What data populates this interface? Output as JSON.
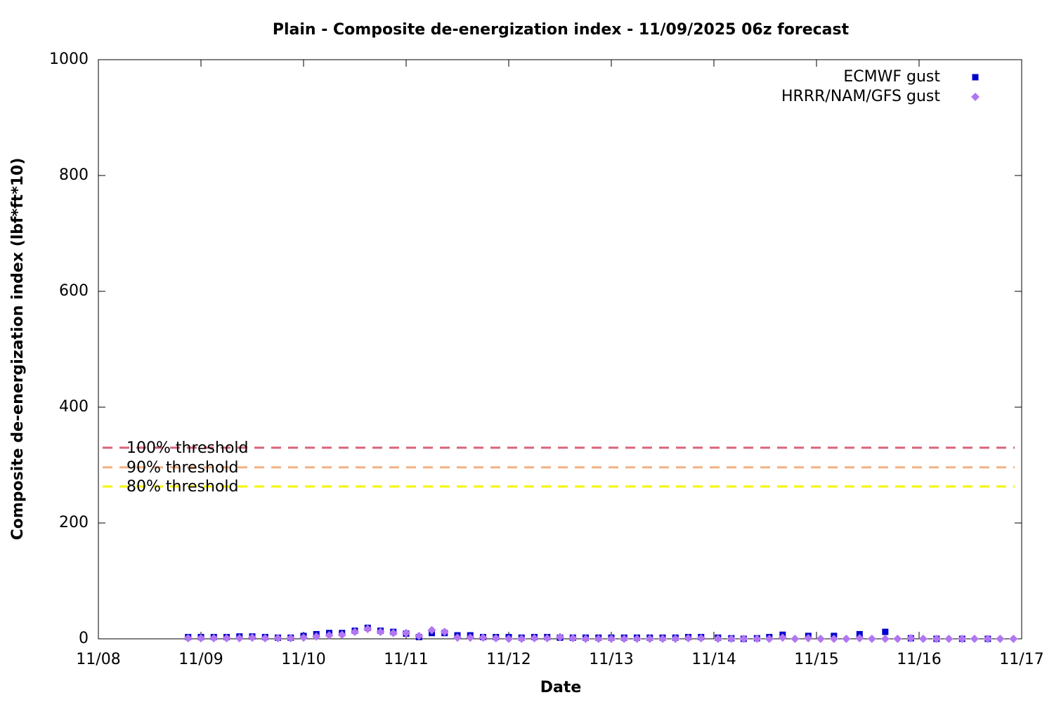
{
  "chart_data": {
    "type": "scatter",
    "title": "Plain - Composite de-energization index - 11/09/2025 06z forecast",
    "xlabel": "Date",
    "ylabel": "Composite de-energization index (lbf*ft*10)",
    "xlim": [
      0,
      9
    ],
    "xticks": [
      {
        "value": 0,
        "label": "11/08"
      },
      {
        "value": 1,
        "label": "11/09"
      },
      {
        "value": 2,
        "label": "11/10"
      },
      {
        "value": 3,
        "label": "11/11"
      },
      {
        "value": 4,
        "label": "11/12"
      },
      {
        "value": 5,
        "label": "11/13"
      },
      {
        "value": 6,
        "label": "11/14"
      },
      {
        "value": 7,
        "label": "11/15"
      },
      {
        "value": 8,
        "label": "11/16"
      },
      {
        "value": 9,
        "label": "11/17"
      }
    ],
    "ylim": [
      0,
      1000
    ],
    "yticks": [
      0,
      200,
      400,
      600,
      800,
      1000
    ],
    "grid": false,
    "legend": "top right",
    "thresholds": [
      {
        "label": "100% threshold",
        "value": 330,
        "color": "#d9647a"
      },
      {
        "label": "90% threshold",
        "value": 296,
        "color": "#f4b183"
      },
      {
        "label": "80% threshold",
        "value": 263,
        "color": "#f5f500"
      }
    ],
    "series": [
      {
        "name": "ECMWF gust",
        "color": "#0000cc",
        "marker": "square",
        "x": [
          0.875,
          1,
          1.125,
          1.25,
          1.375,
          1.5,
          1.625,
          1.75,
          1.875,
          2,
          2.125,
          2.25,
          2.375,
          2.5,
          2.625,
          2.75,
          2.875,
          3,
          3.125,
          3.25,
          3.375,
          3.5,
          3.625,
          3.75,
          3.875,
          4,
          4.125,
          4.25,
          4.375,
          4.5,
          4.625,
          4.75,
          4.875,
          5,
          5.125,
          5.25,
          5.375,
          5.5,
          5.625,
          5.75,
          5.875,
          6.04,
          6.17,
          6.29,
          6.42,
          6.54,
          6.67,
          6.92,
          7.17,
          7.42,
          7.67,
          7.92,
          8.17,
          8.42,
          8.67
        ],
        "values": [
          3,
          3,
          3,
          3,
          4,
          4,
          3,
          2,
          2,
          5,
          8,
          10,
          10,
          14,
          19,
          14,
          12,
          9,
          3,
          10,
          10,
          6,
          6,
          3,
          3,
          3,
          2,
          3,
          3,
          2,
          2,
          2,
          2,
          2,
          2,
          2,
          2,
          2,
          2,
          3,
          3,
          2,
          1,
          0,
          1,
          3,
          7,
          5,
          5,
          8,
          12,
          1,
          0,
          0,
          0
        ]
      },
      {
        "name": "HRRR/NAM/GFS gust",
        "color": "#b276f2",
        "marker": "diamond",
        "x": [
          0.875,
          1,
          1.125,
          1.25,
          1.375,
          1.5,
          1.625,
          1.75,
          1.875,
          2,
          2.125,
          2.25,
          2.375,
          2.5,
          2.625,
          2.75,
          2.875,
          3,
          3.125,
          3.25,
          3.375,
          3.5,
          3.625,
          3.75,
          3.875,
          4,
          4.125,
          4.25,
          4.375,
          4.5,
          4.625,
          4.75,
          4.875,
          5,
          5.125,
          5.25,
          5.375,
          5.5,
          5.625,
          5.75,
          5.875,
          6.04,
          6.17,
          6.29,
          6.42,
          6.54,
          6.67,
          6.79,
          6.92,
          7.04,
          7.17,
          7.29,
          7.42,
          7.54,
          7.67,
          7.79,
          7.92,
          8.04,
          8.17,
          8.29,
          8.42,
          8.54,
          8.67,
          8.79,
          8.92
        ],
        "values": [
          1,
          1,
          1,
          1,
          1,
          2,
          1,
          1,
          1,
          2,
          4,
          6,
          7,
          12,
          17,
          12,
          10,
          10,
          5,
          15,
          12,
          2,
          2,
          2,
          1,
          0,
          0,
          1,
          1,
          3,
          1,
          0,
          0,
          0,
          0,
          0,
          0,
          0,
          0,
          1,
          1,
          0,
          0,
          0,
          0,
          0,
          2,
          0,
          1,
          0,
          0,
          0,
          1,
          0,
          0,
          0,
          1,
          0,
          0,
          0,
          0,
          0,
          0,
          0,
          0
        ]
      }
    ]
  }
}
